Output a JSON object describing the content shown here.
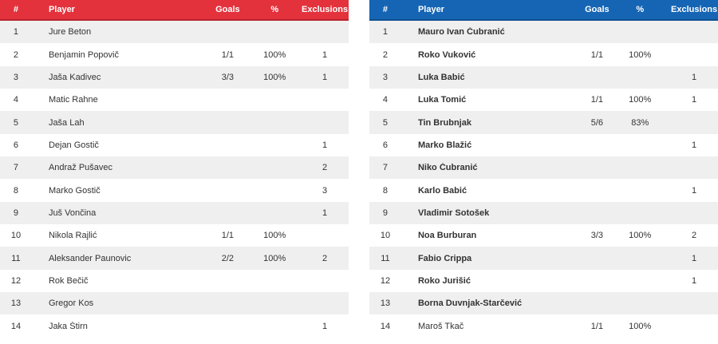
{
  "headers": {
    "num": "#",
    "player": "Player",
    "goals": "Goals",
    "pct": "%",
    "exclusions": "Exclusions"
  },
  "colors": {
    "left_header": "#e3323c",
    "right_header": "#1565b4",
    "stripe": "#efefef"
  },
  "left_team": {
    "rows": [
      {
        "num": "1",
        "name": "Jure Beton",
        "goals": "",
        "pct": "",
        "exclusions": ""
      },
      {
        "num": "2",
        "name": "Benjamin Popovič",
        "goals": "1/1",
        "pct": "100%",
        "exclusions": "1"
      },
      {
        "num": "3",
        "name": "Jaša Kadivec",
        "goals": "3/3",
        "pct": "100%",
        "exclusions": "1"
      },
      {
        "num": "4",
        "name": "Matic Rahne",
        "goals": "",
        "pct": "",
        "exclusions": ""
      },
      {
        "num": "5",
        "name": "Jaša Lah",
        "goals": "",
        "pct": "",
        "exclusions": ""
      },
      {
        "num": "6",
        "name": "Dejan Gostič",
        "goals": "",
        "pct": "",
        "exclusions": "1"
      },
      {
        "num": "7",
        "name": "Andraž Pušavec",
        "goals": "",
        "pct": "",
        "exclusions": "2"
      },
      {
        "num": "8",
        "name": "Marko Gostič",
        "goals": "",
        "pct": "",
        "exclusions": "3"
      },
      {
        "num": "9",
        "name": "Juš Vončina",
        "goals": "",
        "pct": "",
        "exclusions": "1"
      },
      {
        "num": "10",
        "name": "Nikola Rajlić",
        "goals": "1/1",
        "pct": "100%",
        "exclusions": ""
      },
      {
        "num": "11",
        "name": "Aleksander Paunovic",
        "goals": "2/2",
        "pct": "100%",
        "exclusions": "2"
      },
      {
        "num": "12",
        "name": "Rok Bečič",
        "goals": "",
        "pct": "",
        "exclusions": ""
      },
      {
        "num": "13",
        "name": "Gregor Kos",
        "goals": "",
        "pct": "",
        "exclusions": ""
      },
      {
        "num": "14",
        "name": "Jaka Štirn",
        "goals": "",
        "pct": "",
        "exclusions": "1"
      }
    ]
  },
  "right_team": {
    "rows": [
      {
        "num": "1",
        "name": "Mauro Ivan Čubranić",
        "goals": "",
        "pct": "",
        "exclusions": ""
      },
      {
        "num": "2",
        "name": "Roko Vuković",
        "goals": "1/1",
        "pct": "100%",
        "exclusions": ""
      },
      {
        "num": "3",
        "name": "Luka Babić",
        "goals": "",
        "pct": "",
        "exclusions": "1"
      },
      {
        "num": "4",
        "name": "Luka Tomić",
        "goals": "1/1",
        "pct": "100%",
        "exclusions": "1"
      },
      {
        "num": "5",
        "name": "Tin Brubnjak",
        "goals": "5/6",
        "pct": "83%",
        "exclusions": ""
      },
      {
        "num": "6",
        "name": "Marko Blažić",
        "goals": "",
        "pct": "",
        "exclusions": "1"
      },
      {
        "num": "7",
        "name": "Niko Čubranić",
        "goals": "",
        "pct": "",
        "exclusions": ""
      },
      {
        "num": "8",
        "name": "Karlo Babić",
        "goals": "",
        "pct": "",
        "exclusions": "1"
      },
      {
        "num": "9",
        "name": "Vladimir Sotošek",
        "goals": "",
        "pct": "",
        "exclusions": ""
      },
      {
        "num": "10",
        "name": "Noa Burburan",
        "goals": "3/3",
        "pct": "100%",
        "exclusions": "2"
      },
      {
        "num": "11",
        "name": "Fabio Crippa",
        "goals": "",
        "pct": "",
        "exclusions": "1"
      },
      {
        "num": "12",
        "name": "Roko Jurišić",
        "goals": "",
        "pct": "",
        "exclusions": "1"
      },
      {
        "num": "13",
        "name": "Borna Duvnjak-Starčević",
        "goals": "",
        "pct": "",
        "exclusions": ""
      },
      {
        "num": "14",
        "name": "Maroš Tkač",
        "goals": "1/1",
        "pct": "100%",
        "exclusions": "",
        "plain": true
      }
    ]
  }
}
